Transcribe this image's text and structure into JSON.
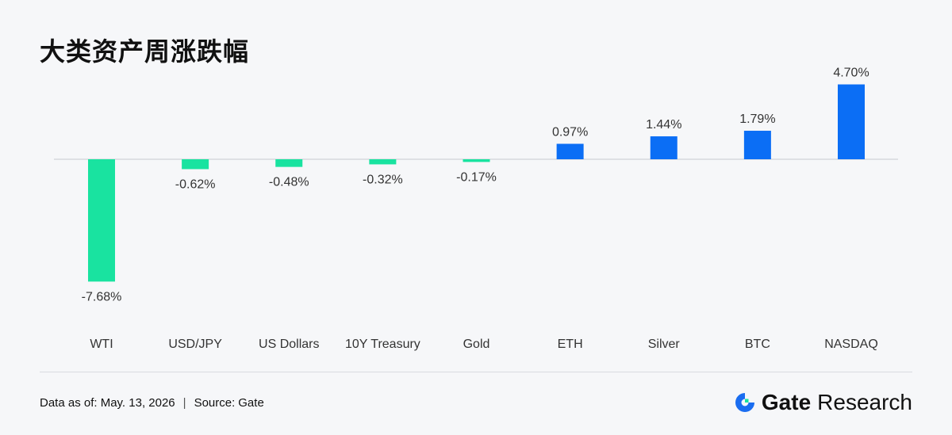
{
  "header": {
    "title": "大类资产周涨跌幅"
  },
  "footer": {
    "date_label": "Data as of: May. 13, 2026",
    "separator": "|",
    "source_label": "Source:",
    "source_value": "Gate"
  },
  "brand": {
    "name": "Gate",
    "suffix": "Research",
    "logo_icon": "gate-logo-icon"
  },
  "colors": {
    "positive": "#0b6ef5",
    "negative": "#19e3a0",
    "baseline": "#d5d8de",
    "text": "#333333",
    "logo_blue": "#1a6df0"
  },
  "chart_data": {
    "type": "bar",
    "title": "大类资产周涨跌幅",
    "xlabel": "",
    "ylabel": "",
    "categories": [
      "WTI",
      "USD/JPY",
      "US Dollars",
      "10Y Treasury",
      "Gold",
      "ETH",
      "Silver",
      "BTC",
      "NASDAQ"
    ],
    "values": [
      -7.68,
      -0.62,
      -0.48,
      -0.32,
      -0.17,
      0.97,
      1.44,
      1.79,
      4.7
    ],
    "data_labels": [
      "-7.68%",
      "-0.62%",
      "-0.48%",
      "-0.32%",
      "-0.17%",
      "0.97%",
      "1.44%",
      "1.79%",
      "4.70%"
    ],
    "ylim": [
      -7.68,
      4.7
    ],
    "grid": false,
    "legend": "none"
  }
}
